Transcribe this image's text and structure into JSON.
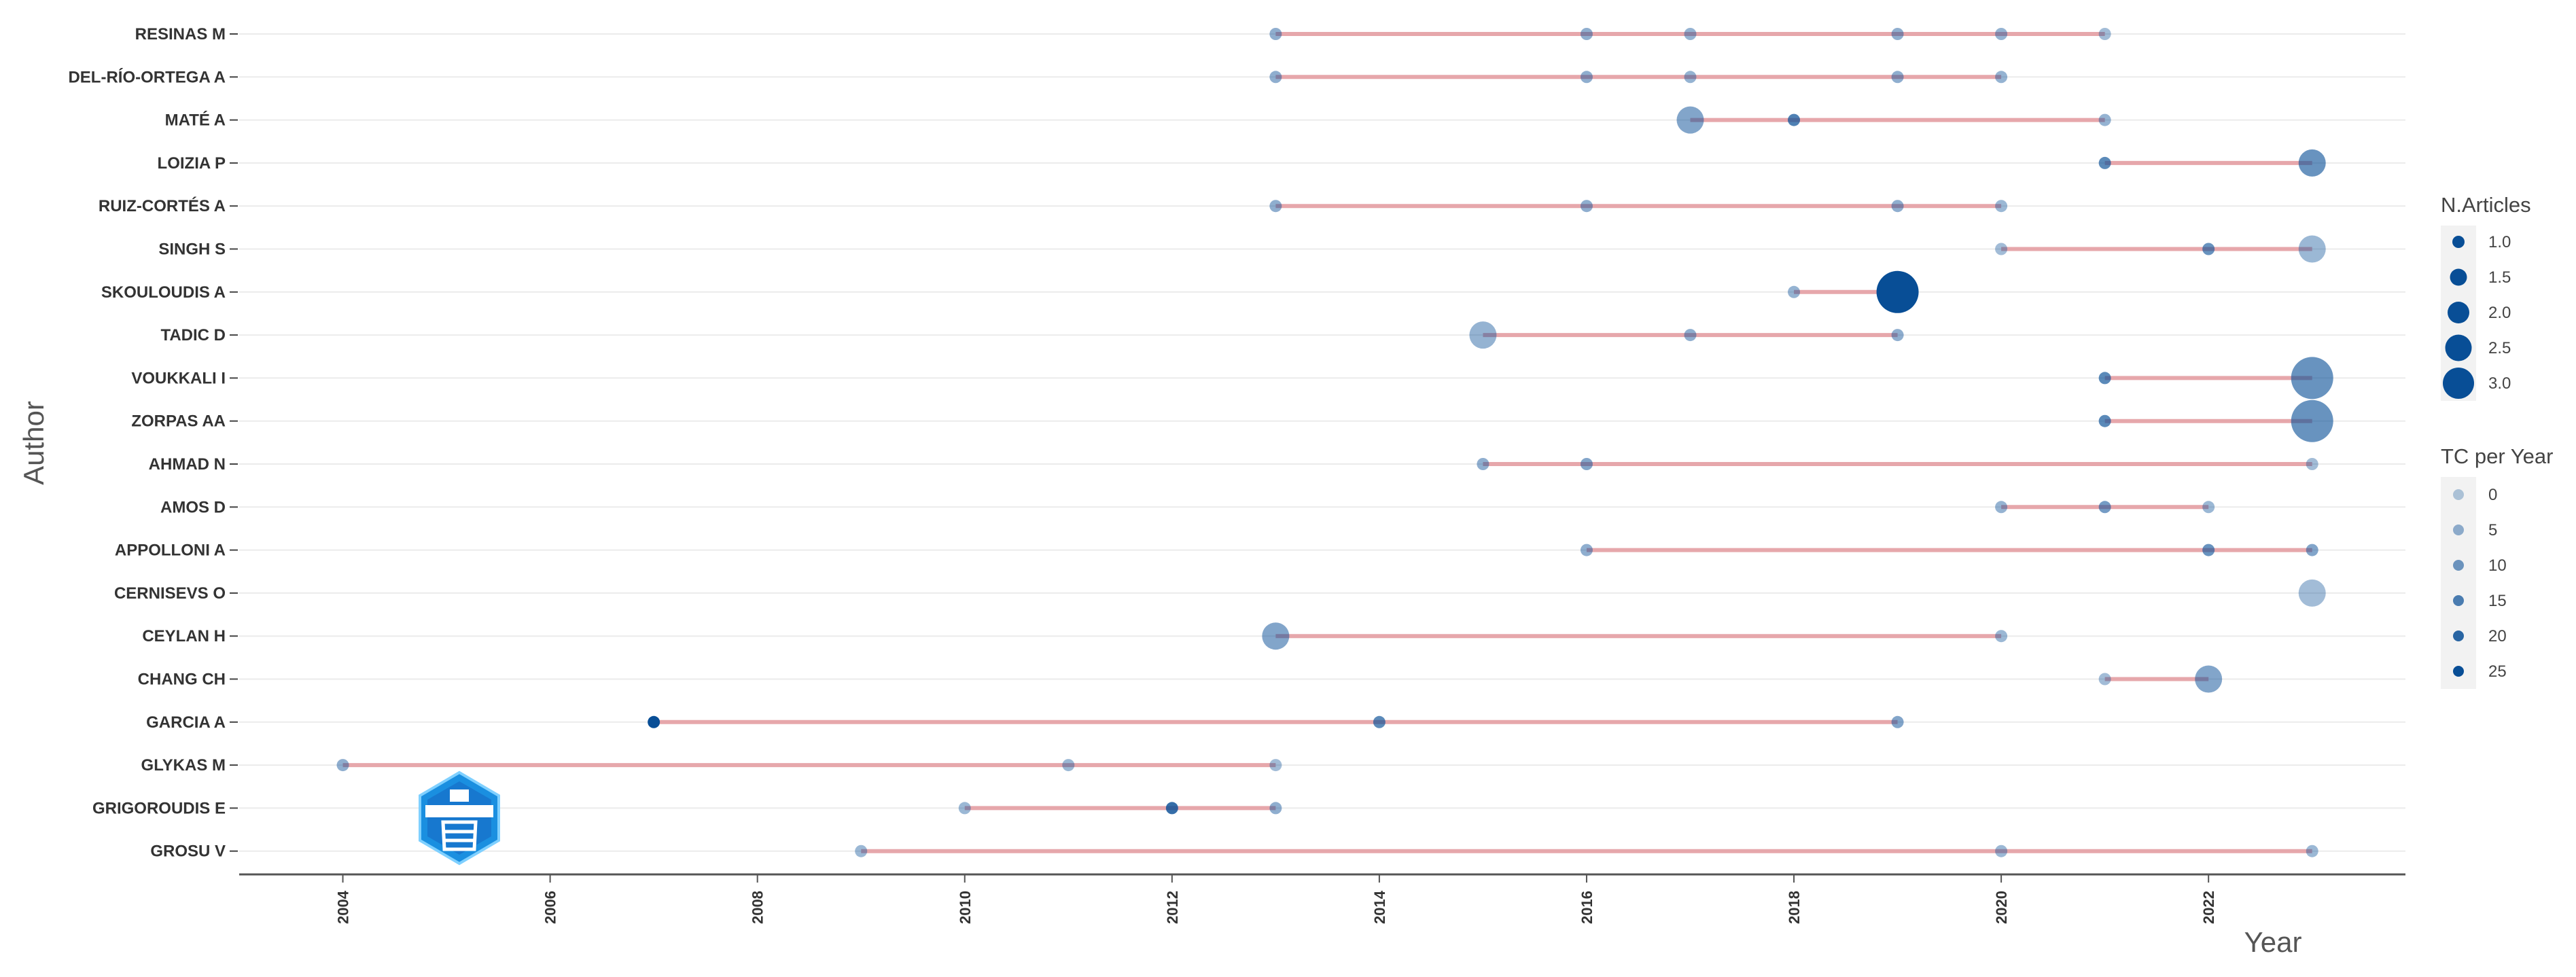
{
  "chart_data": {
    "type": "scatter",
    "xlabel": "Year",
    "ylabel": "Author",
    "xlim": [
      2003,
      2023.9
    ],
    "xticks": [
      2004,
      2006,
      2008,
      2010,
      2012,
      2014,
      2016,
      2018,
      2020,
      2022
    ],
    "grid": "horizontal",
    "authors": [
      {
        "name": "RESINAS M",
        "points": [
          [
            2013,
            1,
            4
          ],
          [
            2016,
            1,
            4
          ],
          [
            2017,
            1,
            3
          ],
          [
            2019,
            1,
            4
          ],
          [
            2020,
            1,
            3
          ],
          [
            2021,
            1,
            1
          ]
        ]
      },
      {
        "name": "DEL-RÍO-ORTEGA A",
        "points": [
          [
            2013,
            1,
            4
          ],
          [
            2016,
            1,
            4
          ],
          [
            2017,
            1,
            3
          ],
          [
            2019,
            1,
            4
          ],
          [
            2020,
            1,
            3
          ]
        ]
      },
      {
        "name": "MATÉ A",
        "points": [
          [
            2017,
            2,
            6
          ],
          [
            2018,
            1,
            14
          ],
          [
            2021,
            1,
            3
          ]
        ]
      },
      {
        "name": "LOIZIA P",
        "points": [
          [
            2021,
            1,
            12
          ],
          [
            2023,
            2,
            10
          ]
        ]
      },
      {
        "name": "RUIZ-CORTÉS A",
        "points": [
          [
            2013,
            1,
            4
          ],
          [
            2016,
            1,
            4
          ],
          [
            2019,
            1,
            4
          ],
          [
            2020,
            1,
            2
          ]
        ]
      },
      {
        "name": "SINGH S",
        "points": [
          [
            2020,
            1,
            1
          ],
          [
            2022,
            1,
            10
          ],
          [
            2023,
            2,
            2
          ]
        ]
      },
      {
        "name": "SKOULOUDIS A",
        "points": [
          [
            2018,
            1,
            3
          ],
          [
            2019,
            3,
            25
          ]
        ]
      },
      {
        "name": "TADIC D",
        "points": [
          [
            2015,
            2,
            3
          ],
          [
            2017,
            1,
            4
          ],
          [
            2019,
            1,
            4
          ]
        ]
      },
      {
        "name": "VOUKKALI I",
        "points": [
          [
            2021,
            1,
            12
          ],
          [
            2023,
            3,
            10
          ]
        ]
      },
      {
        "name": "ZORPAS AA",
        "points": [
          [
            2021,
            1,
            12
          ],
          [
            2023,
            3,
            10
          ]
        ]
      },
      {
        "name": "AHMAD N",
        "points": [
          [
            2015,
            1,
            4
          ],
          [
            2016,
            1,
            6
          ],
          [
            2023,
            1,
            1
          ]
        ]
      },
      {
        "name": "AMOS D",
        "points": [
          [
            2020,
            1,
            3
          ],
          [
            2021,
            1,
            8
          ],
          [
            2022,
            1,
            2
          ]
        ]
      },
      {
        "name": "APPOLLONI A",
        "points": [
          [
            2016,
            1,
            4
          ],
          [
            2022,
            1,
            10
          ],
          [
            2023,
            1,
            6
          ]
        ]
      },
      {
        "name": "CERNISEVS O",
        "points": [
          [
            2023,
            2,
            1
          ]
        ]
      },
      {
        "name": "CEYLAN H",
        "points": [
          [
            2013,
            2,
            6
          ],
          [
            2020,
            1,
            2
          ]
        ]
      },
      {
        "name": "CHANG CH",
        "points": [
          [
            2021,
            1,
            1
          ],
          [
            2022,
            2,
            6
          ]
        ]
      },
      {
        "name": "GARCIA A",
        "points": [
          [
            2007,
            1,
            25
          ],
          [
            2014,
            1,
            12
          ],
          [
            2019,
            1,
            6
          ]
        ]
      },
      {
        "name": "GLYKAS M",
        "points": [
          [
            2004,
            1,
            4
          ],
          [
            2011,
            1,
            2
          ],
          [
            2013,
            1,
            1
          ]
        ]
      },
      {
        "name": "GRIGOROUDIS E",
        "points": [
          [
            2010,
            1,
            2
          ],
          [
            2012,
            1,
            18
          ],
          [
            2013,
            1,
            4
          ]
        ]
      },
      {
        "name": "GROSU V",
        "points": [
          [
            2009,
            1,
            2
          ],
          [
            2020,
            1,
            2
          ],
          [
            2023,
            1,
            2
          ]
        ]
      }
    ],
    "legend_size": {
      "title": "N.Articles",
      "labels": [
        "1.0",
        "1.5",
        "2.0",
        "2.5",
        "3.0"
      ]
    },
    "legend_color": {
      "title": "TC per Year",
      "labels": [
        "0",
        "5",
        "10",
        "15",
        "20",
        "25"
      ]
    },
    "colors": {
      "point": "#084e96",
      "line": "#e6a7ab",
      "grid": "#ebebeb"
    }
  }
}
